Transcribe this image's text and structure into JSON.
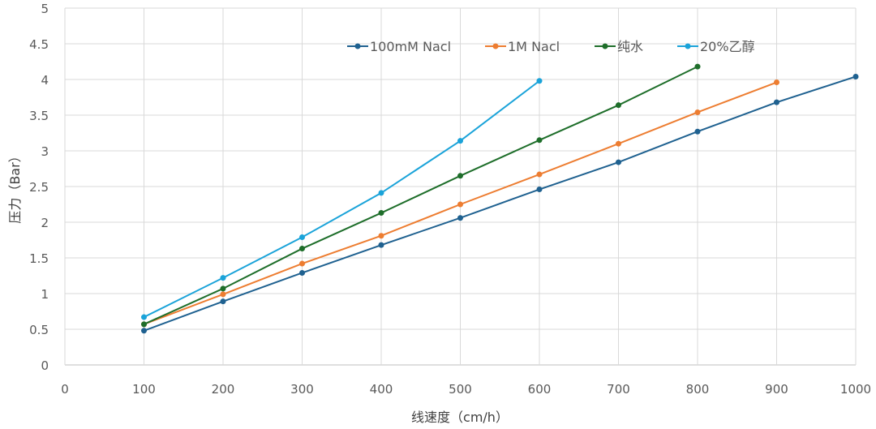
{
  "chart_data": {
    "type": "line",
    "title": "",
    "xlabel": "线速度（cm/h）",
    "ylabel": "压力（Bar）",
    "xlim": [
      0,
      1000
    ],
    "ylim": [
      0,
      5
    ],
    "xticks": [
      0,
      100,
      200,
      300,
      400,
      500,
      600,
      700,
      800,
      900,
      1000
    ],
    "yticks": [
      0,
      0.5,
      1,
      1.5,
      2,
      2.5,
      3,
      3.5,
      4,
      4.5,
      5
    ],
    "grid": true,
    "legend_position": "top",
    "series": [
      {
        "name": "100mM Nacl",
        "color": "#1f6190",
        "x": [
          100,
          200,
          300,
          400,
          500,
          600,
          700,
          800,
          900,
          1000
        ],
        "values": [
          0.48,
          0.89,
          1.29,
          1.68,
          2.06,
          2.46,
          2.84,
          3.27,
          3.68,
          4.04
        ]
      },
      {
        "name": "1M Nacl",
        "color": "#ed7d31",
        "x": [
          100,
          200,
          300,
          400,
          500,
          600,
          700,
          800,
          900
        ],
        "values": [
          0.57,
          0.99,
          1.42,
          1.81,
          2.25,
          2.67,
          3.1,
          3.54,
          3.96
        ]
      },
      {
        "name": "纯水",
        "color": "#1e6e2a",
        "x": [
          100,
          200,
          300,
          400,
          500,
          600,
          700,
          800
        ],
        "values": [
          0.57,
          1.07,
          1.63,
          2.13,
          2.65,
          3.15,
          3.64,
          4.18
        ]
      },
      {
        "name": "20%乙醇",
        "color": "#1aa3d9",
        "x": [
          100,
          200,
          300,
          400,
          500,
          600
        ],
        "values": [
          0.67,
          1.22,
          1.79,
          2.41,
          3.14,
          3.98
        ]
      }
    ]
  }
}
